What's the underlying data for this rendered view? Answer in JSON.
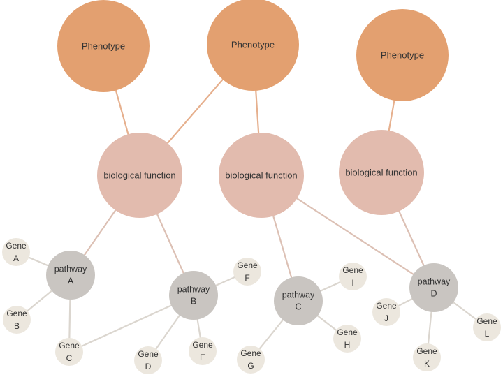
{
  "colors": {
    "phenotype": "#e3a070",
    "function": "#e2bbae",
    "pathway": "#c9c5c1",
    "gene": "#ece7de",
    "edge_phenotype": "#e6b08e",
    "edge_function": "#dcc0b4",
    "edge_gene": "#dbd6cf"
  },
  "nodes": {
    "ph1": {
      "type": "phenotype",
      "lines": [
        "Phenotype"
      ]
    },
    "ph2": {
      "type": "phenotype",
      "lines": [
        "Phenotype"
      ]
    },
    "ph3": {
      "type": "phenotype",
      "lines": [
        "Phenotype"
      ]
    },
    "bf1": {
      "type": "function",
      "lines": [
        "biological function"
      ]
    },
    "bf2": {
      "type": "function",
      "lines": [
        "biological function"
      ]
    },
    "bf3": {
      "type": "function",
      "lines": [
        "biological function"
      ]
    },
    "pwA": {
      "type": "pathway",
      "lines": [
        "pathway",
        "A"
      ]
    },
    "pwB": {
      "type": "pathway",
      "lines": [
        "pathway",
        "B"
      ]
    },
    "pwC": {
      "type": "pathway",
      "lines": [
        "pathway",
        "C"
      ]
    },
    "pwD": {
      "type": "pathway",
      "lines": [
        "pathway",
        "D"
      ]
    },
    "gA": {
      "type": "gene",
      "lines": [
        "Gene",
        "A"
      ]
    },
    "gB": {
      "type": "gene",
      "lines": [
        "Gene",
        "B"
      ]
    },
    "gC": {
      "type": "gene",
      "lines": [
        "Gene",
        "C"
      ]
    },
    "gD": {
      "type": "gene",
      "lines": [
        "Gene",
        "D"
      ]
    },
    "gE": {
      "type": "gene",
      "lines": [
        "Gene",
        "E"
      ]
    },
    "gF": {
      "type": "gene",
      "lines": [
        "Gene",
        "F"
      ]
    },
    "gG": {
      "type": "gene",
      "lines": [
        "Gene",
        "G"
      ]
    },
    "gH": {
      "type": "gene",
      "lines": [
        "Gene",
        "H"
      ]
    },
    "gI": {
      "type": "gene",
      "lines": [
        "Gene",
        "I"
      ]
    },
    "gJ": {
      "type": "gene",
      "lines": [
        "Gene",
        "J"
      ]
    },
    "gK": {
      "type": "gene",
      "lines": [
        "Gene",
        "K"
      ]
    },
    "gL": {
      "type": "gene",
      "lines": [
        "Gene",
        "L"
      ]
    }
  },
  "edges": [
    [
      "ph1",
      "bf1"
    ],
    [
      "ph2",
      "bf1"
    ],
    [
      "ph2",
      "bf2"
    ],
    [
      "ph3",
      "bf3"
    ],
    [
      "bf1",
      "pwA"
    ],
    [
      "bf1",
      "pwB"
    ],
    [
      "bf2",
      "pwC"
    ],
    [
      "bf2",
      "pwD"
    ],
    [
      "bf3",
      "pwD"
    ],
    [
      "pwA",
      "gA"
    ],
    [
      "pwA",
      "gB"
    ],
    [
      "pwA",
      "gC"
    ],
    [
      "pwB",
      "gC"
    ],
    [
      "pwB",
      "gD"
    ],
    [
      "pwB",
      "gE"
    ],
    [
      "pwB",
      "gF"
    ],
    [
      "pwC",
      "gG"
    ],
    [
      "pwC",
      "gH"
    ],
    [
      "pwC",
      "gI"
    ],
    [
      "pwD",
      "gJ"
    ],
    [
      "pwD",
      "gK"
    ],
    [
      "pwD",
      "gL"
    ]
  ]
}
